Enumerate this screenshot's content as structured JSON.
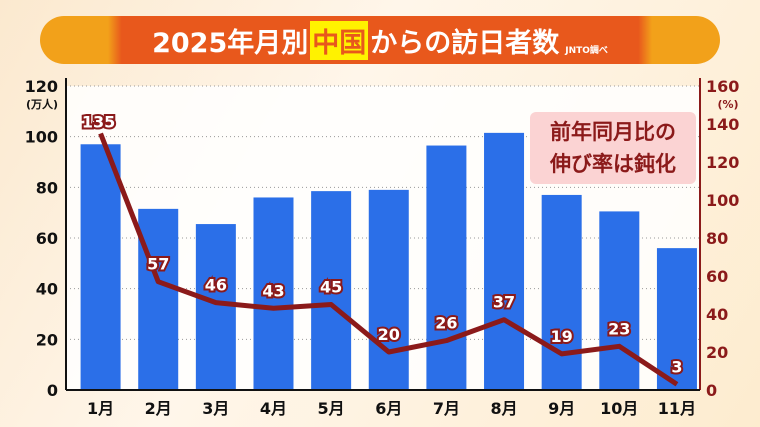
{
  "title": {
    "pre": "2025年月別",
    "highlight": "中国",
    "post": "からの訪日者数",
    "source": "JNTO調べ"
  },
  "note": {
    "line1": "前年同月比の",
    "line2": "伸び率は鈍化"
  },
  "chart_data": {
    "type": "bar+line",
    "title": "2025年月別 中国からの訪日者数",
    "categories": [
      "1月",
      "2月",
      "3月",
      "4月",
      "5月",
      "6月",
      "7月",
      "8月",
      "9月",
      "10月",
      "11月"
    ],
    "series": [
      {
        "name": "訪日者数(万人)",
        "type": "bar",
        "axis": "left",
        "color": "#2b6fe8",
        "values": [
          97,
          71.5,
          65.5,
          76,
          78.5,
          79,
          96.5,
          101.5,
          77,
          70.5,
          56
        ]
      },
      {
        "name": "前年同月比(%)",
        "type": "line",
        "axis": "right",
        "color": "#8b1a1a",
        "values": [
          135,
          57,
          46,
          43,
          45,
          20,
          26,
          37,
          19,
          23,
          3
        ]
      }
    ],
    "yleft": {
      "label": "(万人)",
      "ylim": [
        0,
        120
      ],
      "ticks": [
        0,
        20,
        40,
        60,
        80,
        100,
        120
      ]
    },
    "yright": {
      "label": "(%)",
      "ylim": [
        0,
        160
      ],
      "ticks": [
        0,
        20,
        40,
        60,
        80,
        100,
        120,
        140,
        160
      ]
    },
    "grid": true
  }
}
